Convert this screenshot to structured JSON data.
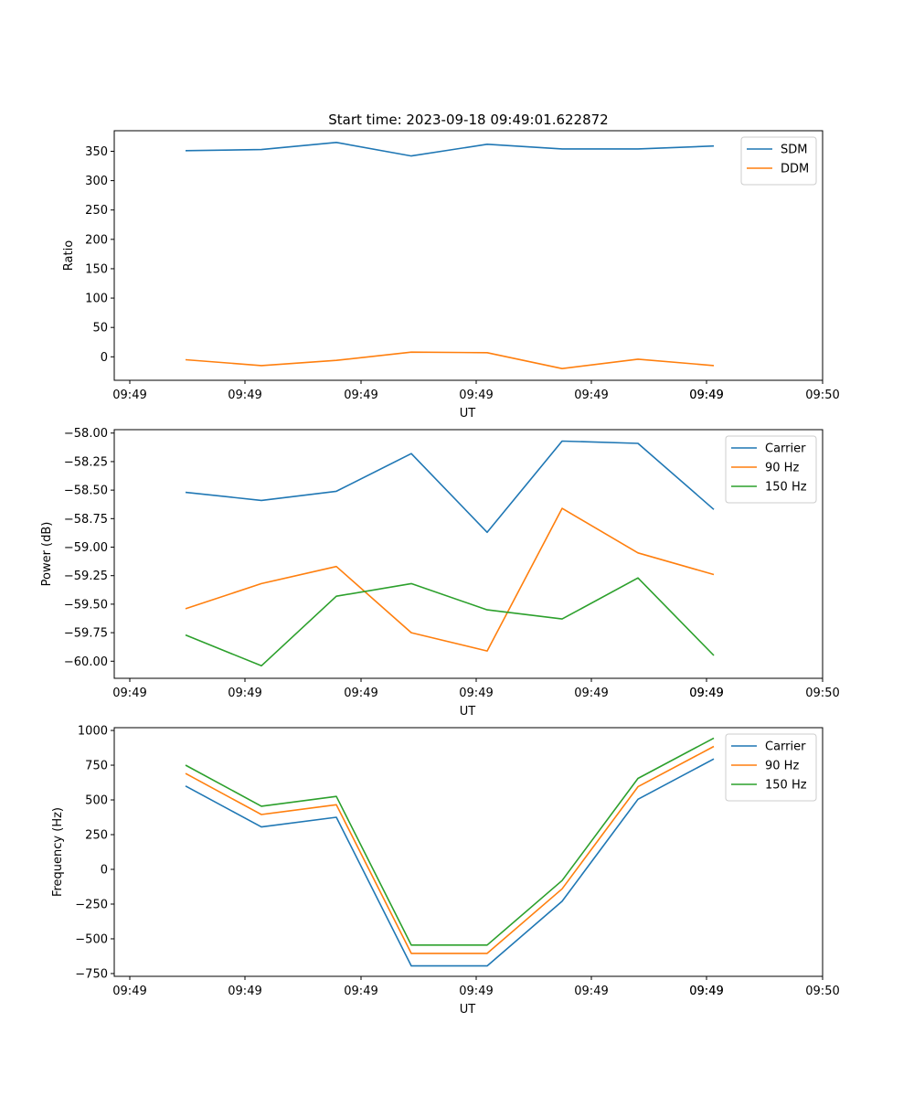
{
  "chart_data": [
    {
      "type": "line",
      "title": "Start time: 2023-09-18 09:49:01.622872",
      "xlabel": "UT",
      "ylabel": "Ratio",
      "xticks": [
        "09:49",
        "09:49",
        "09:49",
        "09:49",
        "09:49",
        "09:49",
        "09:49",
        "09:50"
      ],
      "ylim": [
        -40,
        385
      ],
      "yticks": [
        "0",
        "50",
        "100",
        "150",
        "200",
        "250",
        "300",
        "350"
      ],
      "ytick_values": [
        0,
        50,
        100,
        150,
        200,
        250,
        300,
        350
      ],
      "legend_position": "top-right",
      "series": [
        {
          "name": "SDM",
          "color": "#1f77b4",
          "values": [
            351,
            353,
            365,
            342,
            362,
            354,
            354,
            359
          ]
        },
        {
          "name": "DDM",
          "color": "#ff7f0e",
          "values": [
            -5,
            -15,
            -6,
            8,
            7,
            -20,
            -4,
            -15
          ]
        }
      ]
    },
    {
      "type": "line",
      "title": "",
      "xlabel": "UT",
      "ylabel": "Power (dB)",
      "xticks": [
        "09:49",
        "09:49",
        "09:49",
        "09:49",
        "09:49",
        "09:49",
        "09:49",
        "09:50"
      ],
      "ylim": [
        -60.15,
        -57.97
      ],
      "yticks": [
        "−60.00",
        "−59.75",
        "−59.50",
        "−59.25",
        "−59.00",
        "−58.75",
        "−58.50",
        "−58.25",
        "−58.00"
      ],
      "ytick_values": [
        -60.0,
        -59.75,
        -59.5,
        -59.25,
        -59.0,
        -58.75,
        -58.5,
        -58.25,
        -58.0
      ],
      "legend_position": "top-right",
      "series": [
        {
          "name": "Carrier",
          "color": "#1f77b4",
          "values": [
            -58.52,
            -58.59,
            -58.51,
            -58.18,
            -58.87,
            -58.07,
            -58.09,
            -58.67
          ]
        },
        {
          "name": "90 Hz",
          "color": "#ff7f0e",
          "values": [
            -59.54,
            -59.32,
            -59.17,
            -59.75,
            -59.91,
            -58.66,
            -59.05,
            -59.24
          ]
        },
        {
          "name": "150 Hz",
          "color": "#2ca02c",
          "values": [
            -59.77,
            -60.04,
            -59.43,
            -59.32,
            -59.55,
            -59.63,
            -59.27,
            -59.95
          ]
        }
      ]
    },
    {
      "type": "line",
      "title": "",
      "xlabel": "UT",
      "ylabel": "Frequency (Hz)",
      "xticks": [
        "09:49",
        "09:49",
        "09:49",
        "09:49",
        "09:49",
        "09:49",
        "09:49",
        "09:50"
      ],
      "ylim": [
        -770,
        1020
      ],
      "yticks": [
        "−750",
        "−500",
        "−250",
        "0",
        "250",
        "500",
        "750",
        "1000"
      ],
      "ytick_values": [
        -750,
        -500,
        -250,
        0,
        250,
        500,
        750,
        1000
      ],
      "legend_position": "top-right",
      "series": [
        {
          "name": "Carrier",
          "color": "#1f77b4",
          "values": [
            600,
            305,
            375,
            -695,
            -695,
            -230,
            505,
            795
          ]
        },
        {
          "name": "90 Hz",
          "color": "#ff7f0e",
          "values": [
            690,
            395,
            465,
            -605,
            -605,
            -140,
            595,
            885
          ]
        },
        {
          "name": "150 Hz",
          "color": "#2ca02c",
          "values": [
            750,
            455,
            525,
            -545,
            -545,
            -80,
            655,
            945
          ]
        }
      ]
    }
  ]
}
